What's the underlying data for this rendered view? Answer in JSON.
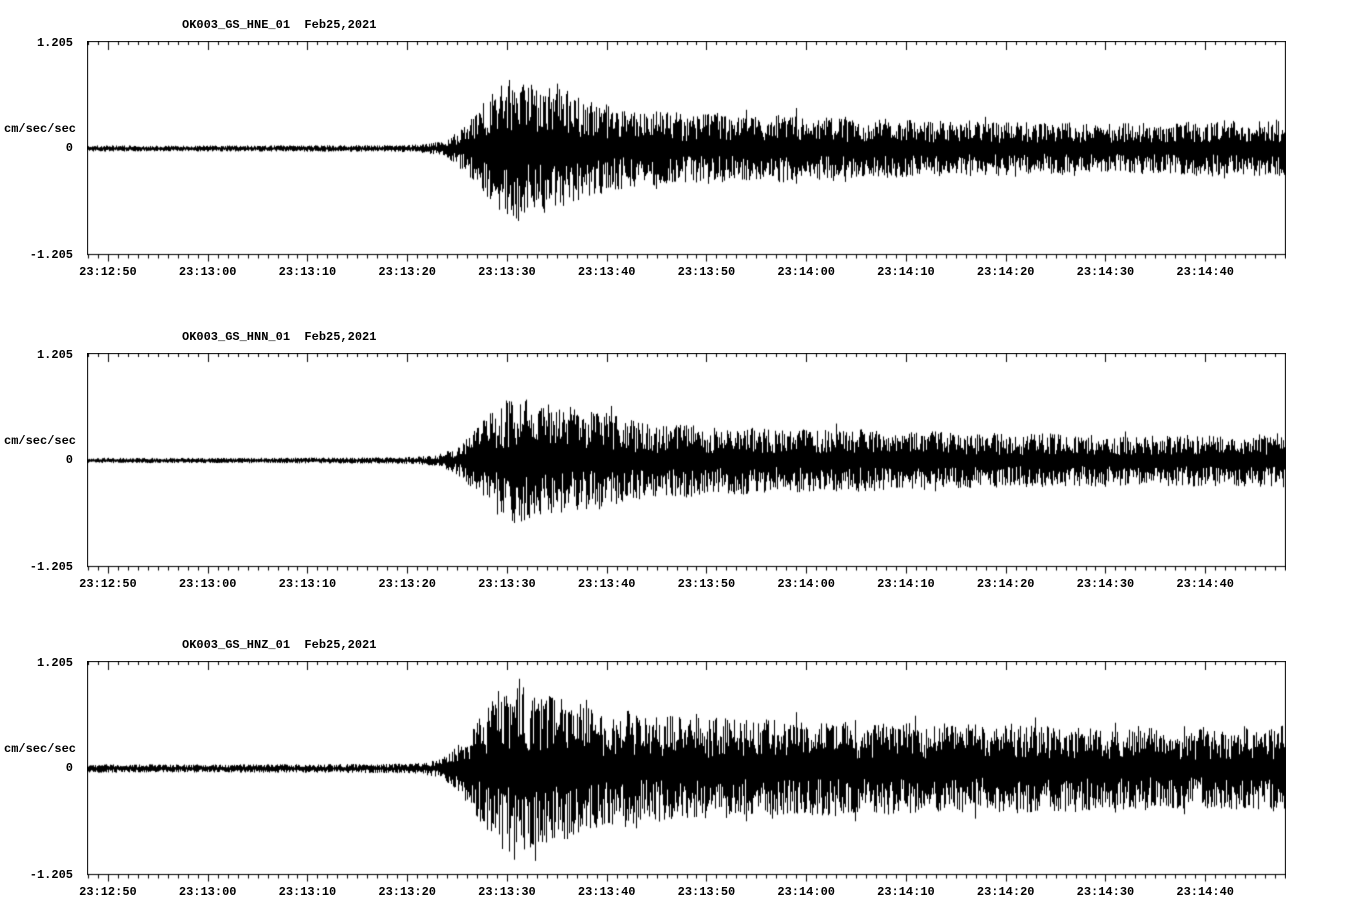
{
  "page": {
    "background": "#ffffff",
    "text_color": "#000000"
  },
  "chart_data": [
    {
      "type": "line",
      "subtype": "seismogram",
      "title": "OK003_GS_HNE_01  Feb25,2021",
      "ylabel": "cm/sec/sec",
      "xlabel": "",
      "yticks": [
        "1.205",
        "0",
        "-1.205"
      ],
      "ylim": [
        -1.205,
        1.205
      ],
      "grid": false,
      "x_range_seconds": [
        0,
        120
      ],
      "xtick_seconds": [
        2,
        12,
        22,
        32,
        42,
        52,
        62,
        72,
        82,
        92,
        102,
        112
      ],
      "xtick_labels": [
        "23:12:50",
        "23:13:00",
        "23:13:10",
        "23:13:20",
        "23:13:30",
        "23:13:40",
        "23:13:50",
        "23:14:00",
        "23:14:10",
        "23:14:20",
        "23:14:30",
        "23:14:40"
      ],
      "envelope": [
        [
          0,
          0.03
        ],
        [
          10,
          0.028
        ],
        [
          20,
          0.03
        ],
        [
          30,
          0.032
        ],
        [
          33,
          0.038
        ],
        [
          35,
          0.06
        ],
        [
          36,
          0.1
        ],
        [
          37,
          0.16
        ],
        [
          38,
          0.26
        ],
        [
          39,
          0.36
        ],
        [
          40,
          0.48
        ],
        [
          41,
          0.58
        ],
        [
          42,
          0.66
        ],
        [
          43,
          0.7
        ],
        [
          44,
          0.64
        ],
        [
          45,
          0.56
        ],
        [
          46,
          0.6
        ],
        [
          47,
          0.63
        ],
        [
          48,
          0.55
        ],
        [
          50,
          0.46
        ],
        [
          52,
          0.42
        ],
        [
          54,
          0.38
        ],
        [
          56,
          0.34
        ],
        [
          58,
          0.37
        ],
        [
          60,
          0.32
        ],
        [
          63,
          0.34
        ],
        [
          66,
          0.3
        ],
        [
          69,
          0.33
        ],
        [
          72,
          0.29
        ],
        [
          75,
          0.31
        ],
        [
          78,
          0.27
        ],
        [
          81,
          0.29
        ],
        [
          84,
          0.25
        ],
        [
          87,
          0.28
        ],
        [
          90,
          0.25
        ],
        [
          93,
          0.27
        ],
        [
          96,
          0.24
        ],
        [
          99,
          0.26
        ],
        [
          102,
          0.23
        ],
        [
          105,
          0.25
        ],
        [
          108,
          0.24
        ],
        [
          111,
          0.26
        ],
        [
          114,
          0.27
        ],
        [
          117,
          0.26
        ],
        [
          120,
          0.28
        ]
      ],
      "spikes": [
        [
          43.5,
          0.7,
          0.55
        ],
        [
          45.8,
          0.5,
          0.73
        ],
        [
          47,
          0.62,
          0.5
        ],
        [
          52,
          0.5,
          0.45
        ],
        [
          57,
          0.42,
          0.46
        ],
        [
          66,
          0.44,
          0.36
        ],
        [
          71,
          0.46,
          0.4
        ],
        [
          76,
          0.36,
          0.38
        ],
        [
          90,
          0.36,
          0.3
        ],
        [
          114,
          0.32,
          0.34
        ]
      ]
    },
    {
      "type": "line",
      "subtype": "seismogram",
      "title": "OK003_GS_HNN_01  Feb25,2021",
      "ylabel": "cm/sec/sec",
      "xlabel": "",
      "yticks": [
        "1.205",
        "0",
        "-1.205"
      ],
      "ylim": [
        -1.205,
        1.205
      ],
      "grid": false,
      "x_range_seconds": [
        0,
        120
      ],
      "xtick_seconds": [
        2,
        12,
        22,
        32,
        42,
        52,
        62,
        72,
        82,
        92,
        102,
        112
      ],
      "xtick_labels": [
        "23:12:50",
        "23:13:00",
        "23:13:10",
        "23:13:20",
        "23:13:30",
        "23:13:40",
        "23:13:50",
        "23:14:00",
        "23:14:10",
        "23:14:20",
        "23:14:30",
        "23:14:40"
      ],
      "envelope": [
        [
          0,
          0.026
        ],
        [
          10,
          0.025
        ],
        [
          20,
          0.027
        ],
        [
          30,
          0.03
        ],
        [
          33,
          0.036
        ],
        [
          35,
          0.055
        ],
        [
          36,
          0.09
        ],
        [
          37,
          0.14
        ],
        [
          38,
          0.22
        ],
        [
          39,
          0.32
        ],
        [
          40,
          0.42
        ],
        [
          41,
          0.52
        ],
        [
          42,
          0.58
        ],
        [
          43,
          0.61
        ],
        [
          44,
          0.58
        ],
        [
          45,
          0.52
        ],
        [
          46,
          0.55
        ],
        [
          47,
          0.5
        ],
        [
          48,
          0.52
        ],
        [
          50,
          0.46
        ],
        [
          52,
          0.48
        ],
        [
          54,
          0.4
        ],
        [
          56,
          0.35
        ],
        [
          58,
          0.33
        ],
        [
          60,
          0.35
        ],
        [
          63,
          0.31
        ],
        [
          66,
          0.33
        ],
        [
          69,
          0.29
        ],
        [
          72,
          0.31
        ],
        [
          75,
          0.28
        ],
        [
          78,
          0.3
        ],
        [
          81,
          0.27
        ],
        [
          84,
          0.29
        ],
        [
          87,
          0.26
        ],
        [
          90,
          0.27
        ],
        [
          93,
          0.25
        ],
        [
          96,
          0.26
        ],
        [
          99,
          0.24
        ],
        [
          102,
          0.25
        ],
        [
          105,
          0.23
        ],
        [
          108,
          0.24
        ],
        [
          111,
          0.25
        ],
        [
          114,
          0.24
        ],
        [
          117,
          0.25
        ],
        [
          120,
          0.26
        ]
      ],
      "spikes": [
        [
          42.5,
          0.63,
          0.5
        ],
        [
          44,
          0.45,
          0.62
        ],
        [
          47,
          0.55,
          0.45
        ],
        [
          52.5,
          0.62,
          0.4
        ],
        [
          60,
          0.4,
          0.42
        ],
        [
          75,
          0.42,
          0.35
        ],
        [
          85,
          0.33,
          0.35
        ],
        [
          104,
          0.33,
          0.28
        ]
      ]
    },
    {
      "type": "line",
      "subtype": "seismogram",
      "title": "OK003_GS_HNZ_01  Feb25,2021",
      "ylabel": "cm/sec/sec",
      "xlabel": "",
      "yticks": [
        "1.205",
        "0",
        "-1.205"
      ],
      "ylim": [
        -1.205,
        1.205
      ],
      "grid": false,
      "x_range_seconds": [
        0,
        120
      ],
      "xtick_seconds": [
        2,
        12,
        22,
        32,
        42,
        52,
        62,
        72,
        82,
        92,
        102,
        112
      ],
      "xtick_labels": [
        "23:12:50",
        "23:13:00",
        "23:13:10",
        "23:13:20",
        "23:13:30",
        "23:13:40",
        "23:13:50",
        "23:14:00",
        "23:14:10",
        "23:14:20",
        "23:14:30",
        "23:14:40"
      ],
      "envelope": [
        [
          0,
          0.04
        ],
        [
          10,
          0.038
        ],
        [
          20,
          0.04
        ],
        [
          30,
          0.044
        ],
        [
          33,
          0.05
        ],
        [
          35,
          0.08
        ],
        [
          36,
          0.13
        ],
        [
          37,
          0.22
        ],
        [
          38,
          0.34
        ],
        [
          39,
          0.46
        ],
        [
          40,
          0.6
        ],
        [
          41,
          0.72
        ],
        [
          42,
          0.82
        ],
        [
          43,
          0.9
        ],
        [
          44,
          0.8
        ],
        [
          45,
          0.7
        ],
        [
          46,
          0.74
        ],
        [
          47,
          0.66
        ],
        [
          48,
          0.68
        ],
        [
          50,
          0.58
        ],
        [
          52,
          0.54
        ],
        [
          54,
          0.56
        ],
        [
          56,
          0.5
        ],
        [
          58,
          0.52
        ],
        [
          60,
          0.47
        ],
        [
          63,
          0.5
        ],
        [
          66,
          0.45
        ],
        [
          69,
          0.48
        ],
        [
          72,
          0.44
        ],
        [
          75,
          0.46
        ],
        [
          78,
          0.42
        ],
        [
          81,
          0.45
        ],
        [
          84,
          0.41
        ],
        [
          87,
          0.44
        ],
        [
          90,
          0.4
        ],
        [
          93,
          0.43
        ],
        [
          96,
          0.4
        ],
        [
          99,
          0.42
        ],
        [
          102,
          0.39
        ],
        [
          105,
          0.41
        ],
        [
          108,
          0.38
        ],
        [
          111,
          0.4
        ],
        [
          114,
          0.39
        ],
        [
          117,
          0.4
        ],
        [
          120,
          0.41
        ]
      ],
      "spikes": [
        [
          43.2,
          1.02,
          0.6
        ],
        [
          44.8,
          0.65,
          1.05
        ],
        [
          46.5,
          0.8,
          0.7
        ],
        [
          50,
          0.78,
          0.6
        ],
        [
          55,
          0.6,
          0.68
        ],
        [
          61,
          0.62,
          0.55
        ],
        [
          66,
          0.55,
          0.6
        ],
        [
          71,
          0.64,
          0.5
        ],
        [
          77,
          0.55,
          0.6
        ],
        [
          83,
          0.6,
          0.5
        ],
        [
          89,
          0.5,
          0.57
        ],
        [
          95,
          0.58,
          0.48
        ],
        [
          103,
          0.52,
          0.5
        ],
        [
          110,
          0.48,
          0.52
        ],
        [
          116,
          0.48,
          0.45
        ]
      ]
    }
  ]
}
